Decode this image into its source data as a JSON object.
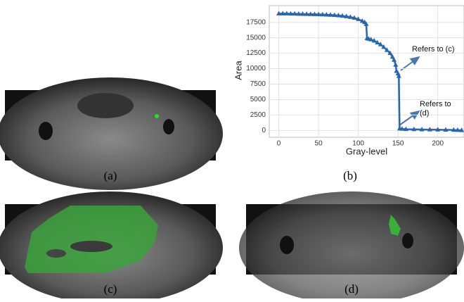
{
  "chart_data": {
    "type": "line",
    "x": [
      0,
      5,
      10,
      15,
      20,
      25,
      30,
      35,
      40,
      45,
      50,
      55,
      60,
      65,
      70,
      75,
      80,
      85,
      90,
      95,
      100,
      105,
      108,
      110,
      111,
      113,
      116,
      120,
      124,
      128,
      132,
      136,
      140,
      143,
      145,
      147,
      148,
      150,
      151,
      152,
      155,
      160,
      170,
      180,
      190,
      200,
      210,
      220,
      225,
      230
    ],
    "values": [
      18900,
      18900,
      18900,
      18880,
      18870,
      18850,
      18840,
      18820,
      18800,
      18790,
      18770,
      18750,
      18720,
      18690,
      18650,
      18600,
      18540,
      18450,
      18350,
      18200,
      18000,
      17700,
      17500,
      17200,
      14900,
      14800,
      14700,
      14500,
      14200,
      13900,
      13500,
      13000,
      12500,
      11900,
      11400,
      10600,
      9600,
      9200,
      8800,
      300,
      250,
      200,
      180,
      160,
      140,
      120,
      100,
      80,
      50,
      20
    ],
    "color": "#2a66ad",
    "xlabel": "Gray-level",
    "ylabel": "Area",
    "xlim": [
      -12,
      233
    ],
    "ylim": [
      -1100,
      20200
    ],
    "xticks": [
      0,
      50,
      100,
      150,
      200
    ],
    "yticks": [
      0,
      2500,
      5000,
      7500,
      10000,
      12500,
      15000,
      17500
    ],
    "grid": true,
    "annotations": [
      [
        "Refers to (c)"
      ],
      [
        "Refers to",
        "(d)"
      ]
    ]
  },
  "captions": [
    "(a)",
    "(b)",
    "(c)",
    "(d)"
  ]
}
